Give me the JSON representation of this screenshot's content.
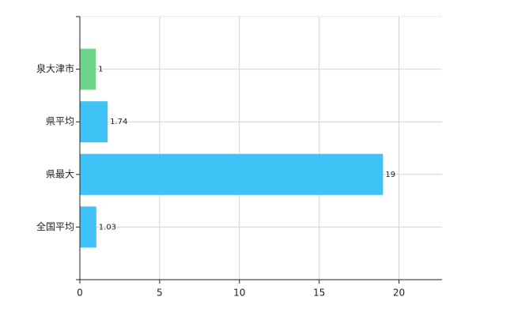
{
  "chart_data": {
    "type": "hbar",
    "categories": [
      "泉大津市",
      "県平均",
      "県最大",
      "全国平均"
    ],
    "values": [
      1,
      1.74,
      19,
      1.03
    ],
    "colors": [
      "#6dd58c",
      "#3fc3f6",
      "#3fc3f6",
      "#3fc3f6"
    ],
    "xlim": [
      0,
      22.7
    ],
    "xticks": [
      0,
      5,
      10,
      15,
      20
    ],
    "grid": true
  }
}
